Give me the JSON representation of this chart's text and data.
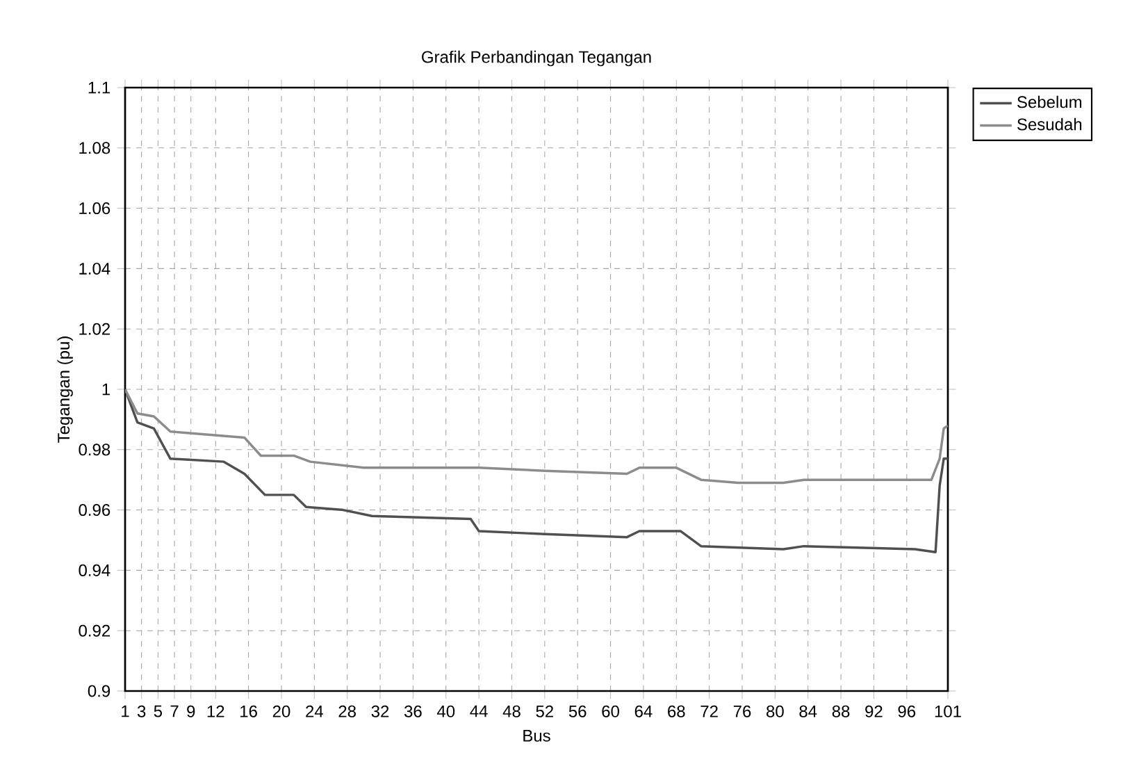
{
  "chart_data": {
    "type": "line",
    "title": "Grafik Perbandingan Tegangan",
    "xlabel": "Bus",
    "ylabel": "Tegangan (pu)",
    "xlim": [
      1,
      101
    ],
    "ylim": [
      0.9,
      1.1
    ],
    "xticks": [
      1,
      3,
      5,
      7,
      9,
      12,
      16,
      20,
      24,
      28,
      32,
      36,
      40,
      44,
      48,
      52,
      56,
      60,
      64,
      68,
      72,
      76,
      80,
      84,
      88,
      92,
      96,
      101
    ],
    "yticks": [
      0.9,
      0.92,
      0.94,
      0.96,
      0.98,
      1,
      1.02,
      1.04,
      1.06,
      1.08,
      1.1
    ],
    "grid": true,
    "legend": "top right",
    "marker": "none",
    "line_style": "solid",
    "series": [
      {
        "name": "Sebelum",
        "color": "#505050",
        "x": [
          1,
          2.5,
          4.5,
          6.5,
          13,
          15.5,
          18,
          21.5,
          23,
          27.5,
          31,
          43,
          44,
          52,
          62,
          63.5,
          68.5,
          71,
          81,
          83.5,
          97,
          99.5,
          100,
          100.5,
          101
        ],
        "values": [
          1.0,
          0.989,
          0.987,
          0.977,
          0.976,
          0.972,
          0.965,
          0.965,
          0.961,
          0.96,
          0.958,
          0.957,
          0.953,
          0.952,
          0.951,
          0.953,
          0.953,
          0.948,
          0.947,
          0.948,
          0.947,
          0.946,
          0.968,
          0.977,
          0.977
        ]
      },
      {
        "name": "Sesudah",
        "color": "#8c8c8c",
        "x": [
          1,
          2.5,
          4.5,
          6.5,
          15.5,
          17.5,
          21.5,
          23.5,
          30,
          44,
          52,
          62,
          63.5,
          68,
          71,
          75.5,
          81,
          83.5,
          99,
          100,
          100.5,
          101
        ],
        "values": [
          1.0,
          0.992,
          0.991,
          0.986,
          0.984,
          0.978,
          0.978,
          0.976,
          0.974,
          0.974,
          0.973,
          0.972,
          0.974,
          0.974,
          0.97,
          0.969,
          0.969,
          0.97,
          0.97,
          0.977,
          0.987,
          0.988
        ]
      }
    ]
  }
}
